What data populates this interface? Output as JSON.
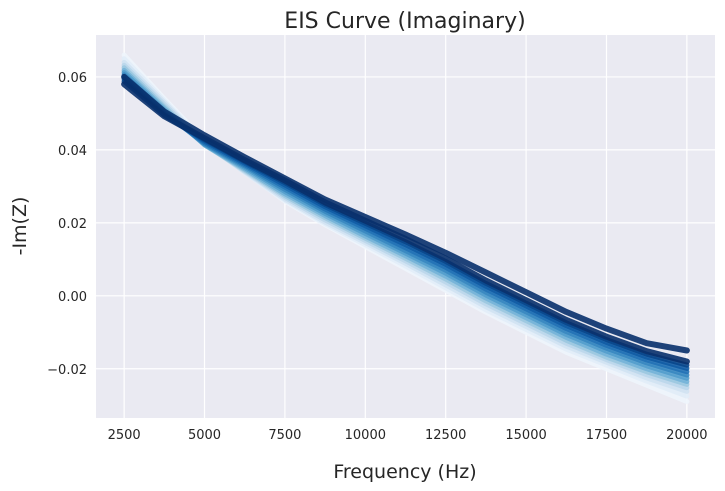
{
  "chart_data": {
    "type": "line",
    "title": "EIS Curve (Imaginary)",
    "xlabel": "Frequency (Hz)",
    "ylabel": "-Im(Z)",
    "xlim": [
      1625,
      20875
    ],
    "ylim": [
      -0.0335,
      0.0715
    ],
    "xticks": [
      2500,
      5000,
      7500,
      10000,
      12500,
      15000,
      17500,
      20000
    ],
    "xtick_labels": [
      "2500",
      "5000",
      "7500",
      "10000",
      "12500",
      "15000",
      "17500",
      "20000"
    ],
    "yticks": [
      -0.02,
      0.0,
      0.02,
      0.04,
      0.06
    ],
    "ytick_labels": [
      "−0.02",
      "0.00",
      "0.02",
      "0.04",
      "0.06"
    ],
    "grid": true,
    "background": "#eaeaf2",
    "colormap": "Blues",
    "x": [
      2500,
      3750,
      5000,
      6250,
      7500,
      8750,
      10000,
      11250,
      12500,
      13750,
      15000,
      16250,
      17500,
      18750,
      20000
    ],
    "series": [
      {
        "color": "#eef5fc",
        "values": [
          0.066,
          0.054,
          0.0425,
          0.034,
          0.026,
          0.0195,
          0.0135,
          0.0075,
          0.0015,
          -0.0045,
          -0.01,
          -0.0155,
          -0.02,
          -0.0245,
          -0.029
        ]
      },
      {
        "color": "#e1edf8",
        "values": [
          0.065,
          0.0535,
          0.042,
          0.0338,
          0.0262,
          0.0198,
          0.014,
          0.0082,
          0.0022,
          -0.0038,
          -0.0092,
          -0.0146,
          -0.019,
          -0.0234,
          -0.0275
        ]
      },
      {
        "color": "#d0e2f2",
        "values": [
          0.064,
          0.053,
          0.0418,
          0.034,
          0.0265,
          0.0202,
          0.0146,
          0.0089,
          0.003,
          -0.003,
          -0.0084,
          -0.0138,
          -0.0182,
          -0.0225,
          -0.0262
        ]
      },
      {
        "color": "#bad6eb",
        "values": [
          0.0632,
          0.0524,
          0.0416,
          0.0342,
          0.027,
          0.0208,
          0.0152,
          0.0096,
          0.0038,
          -0.0022,
          -0.0076,
          -0.013,
          -0.0175,
          -0.0216,
          -0.0252
        ]
      },
      {
        "color": "#9ac8e0",
        "values": [
          0.0625,
          0.0518,
          0.0414,
          0.0345,
          0.0275,
          0.0214,
          0.0158,
          0.0103,
          0.0046,
          -0.0014,
          -0.0068,
          -0.0122,
          -0.0168,
          -0.0208,
          -0.0243
        ]
      },
      {
        "color": "#73b2d8",
        "values": [
          0.0618,
          0.0513,
          0.0414,
          0.0348,
          0.028,
          0.022,
          0.0164,
          0.011,
          0.0054,
          -0.0006,
          -0.006,
          -0.0114,
          -0.016,
          -0.02,
          -0.0235
        ]
      },
      {
        "color": "#529dcc",
        "values": [
          0.0612,
          0.0508,
          0.0415,
          0.0352,
          0.0286,
          0.0226,
          0.0171,
          0.0117,
          0.0062,
          0.0002,
          -0.0052,
          -0.0106,
          -0.0152,
          -0.0192,
          -0.0226
        ]
      },
      {
        "color": "#3787c0",
        "values": [
          0.0606,
          0.0504,
          0.0417,
          0.0356,
          0.0292,
          0.0232,
          0.0178,
          0.0124,
          0.007,
          0.001,
          -0.0044,
          -0.0098,
          -0.0144,
          -0.0184,
          -0.0217
        ]
      },
      {
        "color": "#2171b5",
        "values": [
          0.06,
          0.05,
          0.042,
          0.036,
          0.0298,
          0.0238,
          0.0185,
          0.0132,
          0.0078,
          0.0018,
          -0.0036,
          -0.009,
          -0.0136,
          -0.0176,
          -0.0208
        ]
      },
      {
        "color": "#105ba4",
        "values": [
          0.0594,
          0.0497,
          0.0424,
          0.0364,
          0.0304,
          0.0244,
          0.0192,
          0.014,
          0.0086,
          0.0026,
          -0.0028,
          -0.0082,
          -0.0128,
          -0.0168,
          -0.0199
        ]
      },
      {
        "color": "#08468b",
        "values": [
          0.0588,
          0.0495,
          0.0428,
          0.0368,
          0.031,
          0.025,
          0.0199,
          0.0148,
          0.0094,
          0.0034,
          -0.002,
          -0.0074,
          -0.012,
          -0.016,
          -0.019
        ]
      },
      {
        "color": "#08306b",
        "values": [
          0.058,
          0.0492,
          0.0432,
          0.0372,
          0.0316,
          0.0256,
          0.0206,
          0.0156,
          0.0102,
          0.0042,
          -0.0012,
          -0.0066,
          -0.0112,
          -0.0152,
          -0.018
        ]
      },
      {
        "color": "#08306b",
        "values": [
          0.06,
          0.0505,
          0.044,
          0.038,
          0.0322,
          0.0264,
          0.0216,
          0.0168,
          0.0118,
          0.0064,
          0.001,
          -0.0044,
          -0.009,
          -0.013,
          -0.015
        ]
      }
    ]
  }
}
